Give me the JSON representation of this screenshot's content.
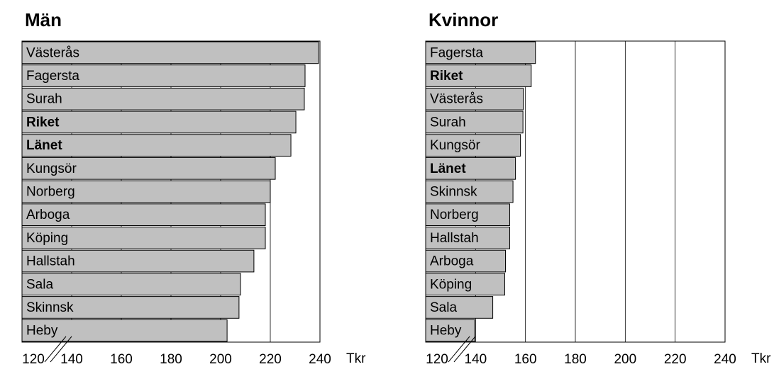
{
  "chart_data": [
    {
      "type": "bar",
      "orientation": "horizontal",
      "title": "Män",
      "categories": [
        "Västerås",
        "Fagersta",
        "Surah",
        "Riket",
        "Länet",
        "Kungsör",
        "Norberg",
        "Arboga",
        "Köping",
        "Hallstah",
        "Sala",
        "Skinnsk",
        "Heby"
      ],
      "values": [
        239.4,
        234,
        233.7,
        230.3,
        228.3,
        222,
        220,
        218,
        218,
        213.4,
        208,
        207.4,
        202.6
      ],
      "emphasized": [
        3,
        4
      ],
      "color": "#c0c0c0",
      "xlim": [
        120,
        240
      ],
      "xticks": [
        120,
        140,
        160,
        180,
        200,
        220,
        240
      ],
      "x_unit": "Tkr",
      "grid": true
    },
    {
      "type": "bar",
      "orientation": "horizontal",
      "title": "Kvinnor",
      "categories": [
        "Fagersta",
        "Riket",
        "Västerås",
        "Surah",
        "Kungsör",
        "Länet",
        "Skinnsk",
        "Norberg",
        "Hallstah",
        "Arboga",
        "Köping",
        "Sala",
        "Heby"
      ],
      "values": [
        164,
        162.3,
        159.1,
        159,
        158,
        156,
        155,
        153.7,
        153.7,
        152,
        151.7,
        146.9,
        139.7
      ],
      "emphasized": [
        1,
        5
      ],
      "color": "#c0c0c0",
      "xlim": [
        120,
        240
      ],
      "xticks": [
        120,
        140,
        160,
        180,
        200,
        220,
        240
      ],
      "x_unit": "Tkr",
      "grid": true
    }
  ]
}
